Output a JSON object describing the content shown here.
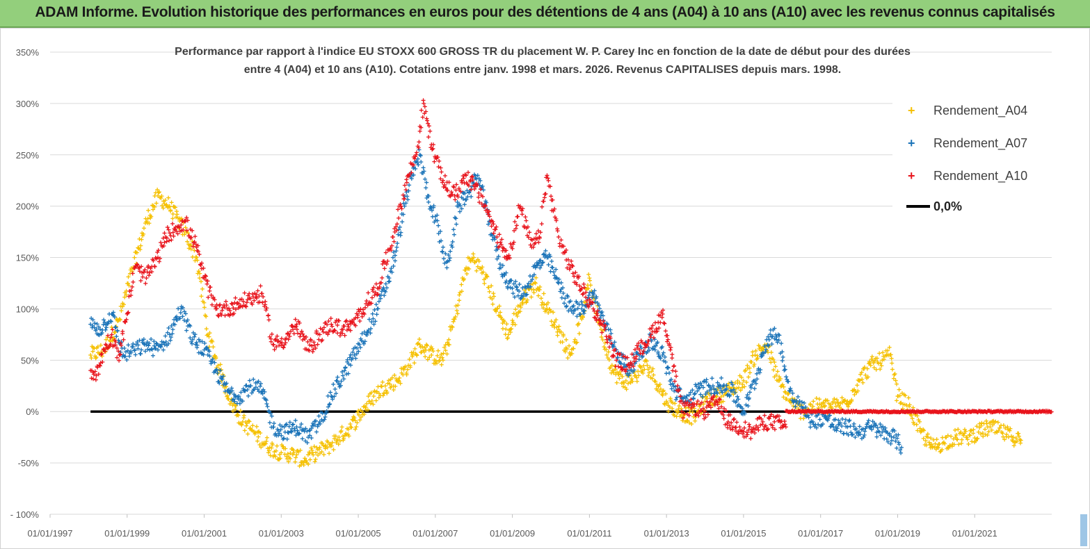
{
  "banner": {
    "title": "ADAM Informe. Evolution historique des performances en euros pour des détentions de 4 ans (A04) à 10 ans (A10) avec les revenus connus capitalisés",
    "background": "#93cf7c"
  },
  "chart_data": {
    "type": "scatter",
    "title_line1": "Performance par rapport à l'indice EU STOXX 600 GROSS TR  du placement W. P. Carey Inc en fonction de la date de début pour des durées",
    "title_line2": "entre 4 (A04) et 10 ans (A10). Cotations entre janv. 1998 et mars. 2026. Revenus CAPITALISES depuis mars. 1998.",
    "xlabel": "",
    "ylabel": "",
    "x_tick_labels": [
      "01/01/1997",
      "01/01/1999",
      "01/01/2001",
      "01/01/2003",
      "01/01/2005",
      "01/01/2007",
      "01/01/2009",
      "01/01/2011",
      "01/01/2013",
      "01/01/2015",
      "01/01/2017",
      "01/01/2019",
      "01/01/2021"
    ],
    "x_range": [
      1997.0,
      2023.0
    ],
    "y_tick_labels": [
      "- 100%",
      "-50%",
      "0%",
      "50%",
      "100%",
      "150%",
      "200%",
      "250%",
      "300%",
      "350%"
    ],
    "y_range": [
      -100,
      350
    ],
    "grid": "horizontal",
    "legend_position": "top-right",
    "legend": [
      "Rendement_A04",
      "Rendement_A07",
      "Rendement_A10",
      "0,0%"
    ],
    "series": [
      {
        "name": "Rendement_A04",
        "color": "#f5c000",
        "marker": "+",
        "x": [
          1998.05,
          1998.4,
          1998.8,
          1999.15,
          1999.5,
          1999.8,
          2000.1,
          2000.5,
          2000.8,
          2001.1,
          2001.4,
          2001.7,
          2002.0,
          2002.3,
          2002.7,
          2003.0,
          2003.3,
          2003.6,
          2003.9,
          2004.2,
          2004.5,
          2004.8,
          2005.1,
          2005.4,
          2005.7,
          2006.0,
          2006.3,
          2006.6,
          2006.9,
          2007.2,
          2007.5,
          2007.8,
          2008.0,
          2008.3,
          2008.6,
          2008.9,
          2009.1,
          2009.3,
          2009.6,
          2009.9,
          2010.2,
          2010.5,
          2010.8,
          2011.0,
          2011.3,
          2011.6,
          2011.9,
          2012.2,
          2012.5,
          2012.8,
          2013.0,
          2013.3,
          2013.7,
          2014.0,
          2014.3,
          2014.6,
          2015.0,
          2015.3,
          2015.6,
          2015.9,
          2016.2,
          2016.5,
          2016.8,
          2017.1,
          2017.4,
          2017.7,
          2018.0,
          2018.3,
          2018.6,
          2018.8,
          2019.0,
          2019.3,
          2019.6,
          2019.9,
          2020.2,
          2020.5,
          2020.8,
          2021.1,
          2021.4,
          2021.7,
          2022.0,
          2022.2
        ],
        "y": [
          55,
          60,
          90,
          140,
          185,
          210,
          200,
          175,
          150,
          75,
          40,
          10,
          -10,
          -20,
          -35,
          -40,
          -42,
          -48,
          -40,
          -35,
          -25,
          -15,
          0,
          15,
          25,
          30,
          45,
          65,
          55,
          50,
          90,
          140,
          150,
          130,
          100,
          75,
          95,
          110,
          125,
          100,
          80,
          55,
          90,
          130,
          80,
          40,
          28,
          35,
          45,
          25,
          10,
          0,
          -5,
          10,
          15,
          20,
          30,
          55,
          65,
          30,
          10,
          0,
          5,
          5,
          5,
          10,
          30,
          45,
          50,
          55,
          15,
          5,
          -20,
          -35,
          -30,
          -25,
          -25,
          -20,
          -15,
          -20,
          -25,
          -28
        ]
      },
      {
        "name": "Rendement_A07",
        "color": "#1a73b8",
        "marker": "+",
        "x": [
          1998.05,
          1998.3,
          1998.6,
          1998.9,
          1999.2,
          1999.5,
          1999.8,
          2000.1,
          2000.4,
          2000.7,
          2001.0,
          2001.3,
          2001.6,
          2001.9,
          2002.2,
          2002.5,
          2002.8,
          2003.1,
          2003.4,
          2003.7,
          2004.0,
          2004.3,
          2004.6,
          2004.9,
          2005.2,
          2005.5,
          2005.8,
          2006.0,
          2006.2,
          2006.4,
          2006.6,
          2006.8,
          2007.0,
          2007.3,
          2007.6,
          2007.9,
          2008.1,
          2008.4,
          2008.7,
          2009.0,
          2009.3,
          2009.6,
          2009.9,
          2010.2,
          2010.5,
          2010.8,
          2011.1,
          2011.4,
          2011.7,
          2012.0,
          2012.3,
          2012.6,
          2012.9,
          2013.2,
          2013.5,
          2013.8,
          2014.1,
          2014.4,
          2014.7,
          2015.0,
          2015.3,
          2015.6,
          2015.9,
          2016.2,
          2016.5,
          2016.8,
          2017.1,
          2017.4,
          2017.7,
          2018.0,
          2018.3,
          2018.6,
          2018.9,
          2019.1
        ],
        "y": [
          85,
          80,
          95,
          55,
          60,
          65,
          60,
          75,
          100,
          70,
          60,
          40,
          20,
          15,
          25,
          20,
          -15,
          -20,
          -15,
          -25,
          -10,
          15,
          35,
          55,
          75,
          100,
          130,
          160,
          200,
          230,
          250,
          210,
          190,
          140,
          200,
          215,
          230,
          185,
          140,
          120,
          115,
          140,
          150,
          125,
          100,
          100,
          115,
          85,
          60,
          40,
          55,
          70,
          55,
          20,
          10,
          20,
          25,
          25,
          20,
          0,
          30,
          70,
          75,
          20,
          5,
          -10,
          -5,
          -15,
          -15,
          -20,
          -15,
          -20,
          -25,
          -35
        ]
      },
      {
        "name": "Rendement_A10",
        "color": "#e8141c",
        "marker": "+",
        "x": [
          1998.05,
          1998.2,
          1998.4,
          1998.6,
          1998.8,
          1999.0,
          1999.2,
          1999.5,
          1999.8,
          2000.0,
          2000.3,
          2000.5,
          2000.8,
          2001.0,
          2001.3,
          2001.6,
          2001.9,
          2002.2,
          2002.5,
          2002.8,
          2003.1,
          2003.4,
          2003.7,
          2004.0,
          2004.3,
          2004.6,
          2004.9,
          2005.2,
          2005.5,
          2005.7,
          2005.9,
          2006.1,
          2006.3,
          2006.5,
          2006.7,
          2006.9,
          2007.2,
          2007.5,
          2007.8,
          2008.0,
          2008.3,
          2008.6,
          2008.9,
          2009.2,
          2009.5,
          2009.7,
          2009.9,
          2010.2,
          2010.5,
          2010.8,
          2011.1,
          2011.4,
          2011.7,
          2012.0,
          2012.3,
          2012.6,
          2012.9,
          2013.1,
          2013.4,
          2013.7,
          2014.0,
          2014.3,
          2014.6,
          2014.9,
          2015.2,
          2015.5,
          2015.8,
          2016.1
        ],
        "y": [
          40,
          35,
          60,
          75,
          55,
          95,
          140,
          130,
          150,
          170,
          180,
          185,
          160,
          130,
          100,
          100,
          105,
          110,
          115,
          65,
          70,
          85,
          60,
          75,
          85,
          80,
          85,
          105,
          120,
          145,
          170,
          200,
          230,
          250,
          300,
          260,
          225,
          210,
          230,
          220,
          200,
          170,
          150,
          200,
          160,
          170,
          230,
          170,
          140,
          120,
          100,
          80,
          50,
          45,
          60,
          75,
          95,
          60,
          0,
          5,
          0,
          10,
          -10,
          -15,
          -20,
          -10,
          -10,
          -15
        ]
      }
    ],
    "reference_line": {
      "name": "0,0%",
      "y": 0,
      "x_start": 1998.05,
      "x_end": 2016.1,
      "color": "#000000"
    },
    "flat_a10_tail": {
      "x_start": 2016.1,
      "x_end": 2023.0,
      "y": 0
    }
  }
}
